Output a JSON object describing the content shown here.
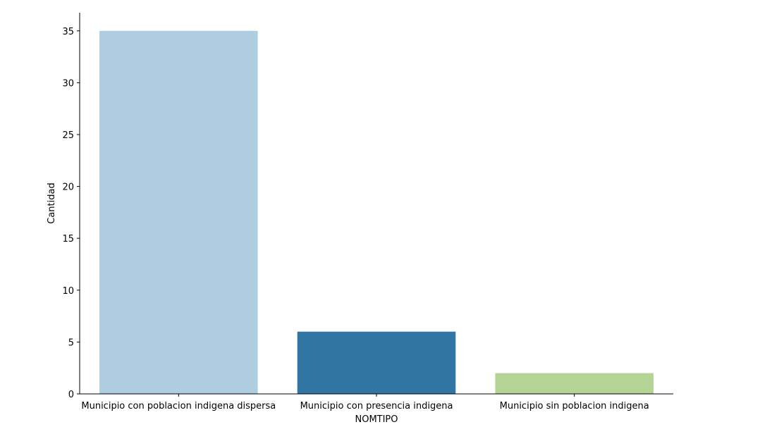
{
  "chart_data": {
    "type": "bar",
    "title": "",
    "xlabel": "NOMTIPO",
    "ylabel": "Cantidad",
    "categories": [
      "Municipio con poblacion indigena dispersa",
      "Municipio con presencia indigena",
      "Municipio sin poblacion indigena"
    ],
    "values": [
      35,
      6,
      2
    ],
    "colors": [
      "#afcde0",
      "#3175a4",
      "#b3d494"
    ],
    "ylim": [
      0,
      36.75
    ],
    "yticks": [
      0,
      5,
      10,
      15,
      20,
      25,
      30,
      35
    ],
    "grid": false
  }
}
